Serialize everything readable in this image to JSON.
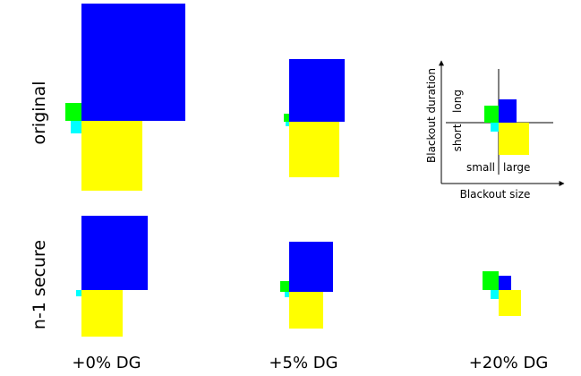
{
  "colors": {
    "blue": "#0000ff",
    "yellow": "#ffff00",
    "green": "#00ff00",
    "cyan": "#00ffff",
    "axis": "#000000"
  },
  "row_labels": [
    "original",
    "n-1 secure"
  ],
  "column_labels": [
    "+0% DG",
    "+5% DG",
    "+20% DG"
  ],
  "legend": {
    "x_axis_label": "Blackout size",
    "y_axis_label": "Blackout duration",
    "quadrants": {
      "top_left": "long",
      "bottom_left": "short",
      "bottom_left_lower": "small",
      "bottom_right_lower": "large"
    }
  }
}
